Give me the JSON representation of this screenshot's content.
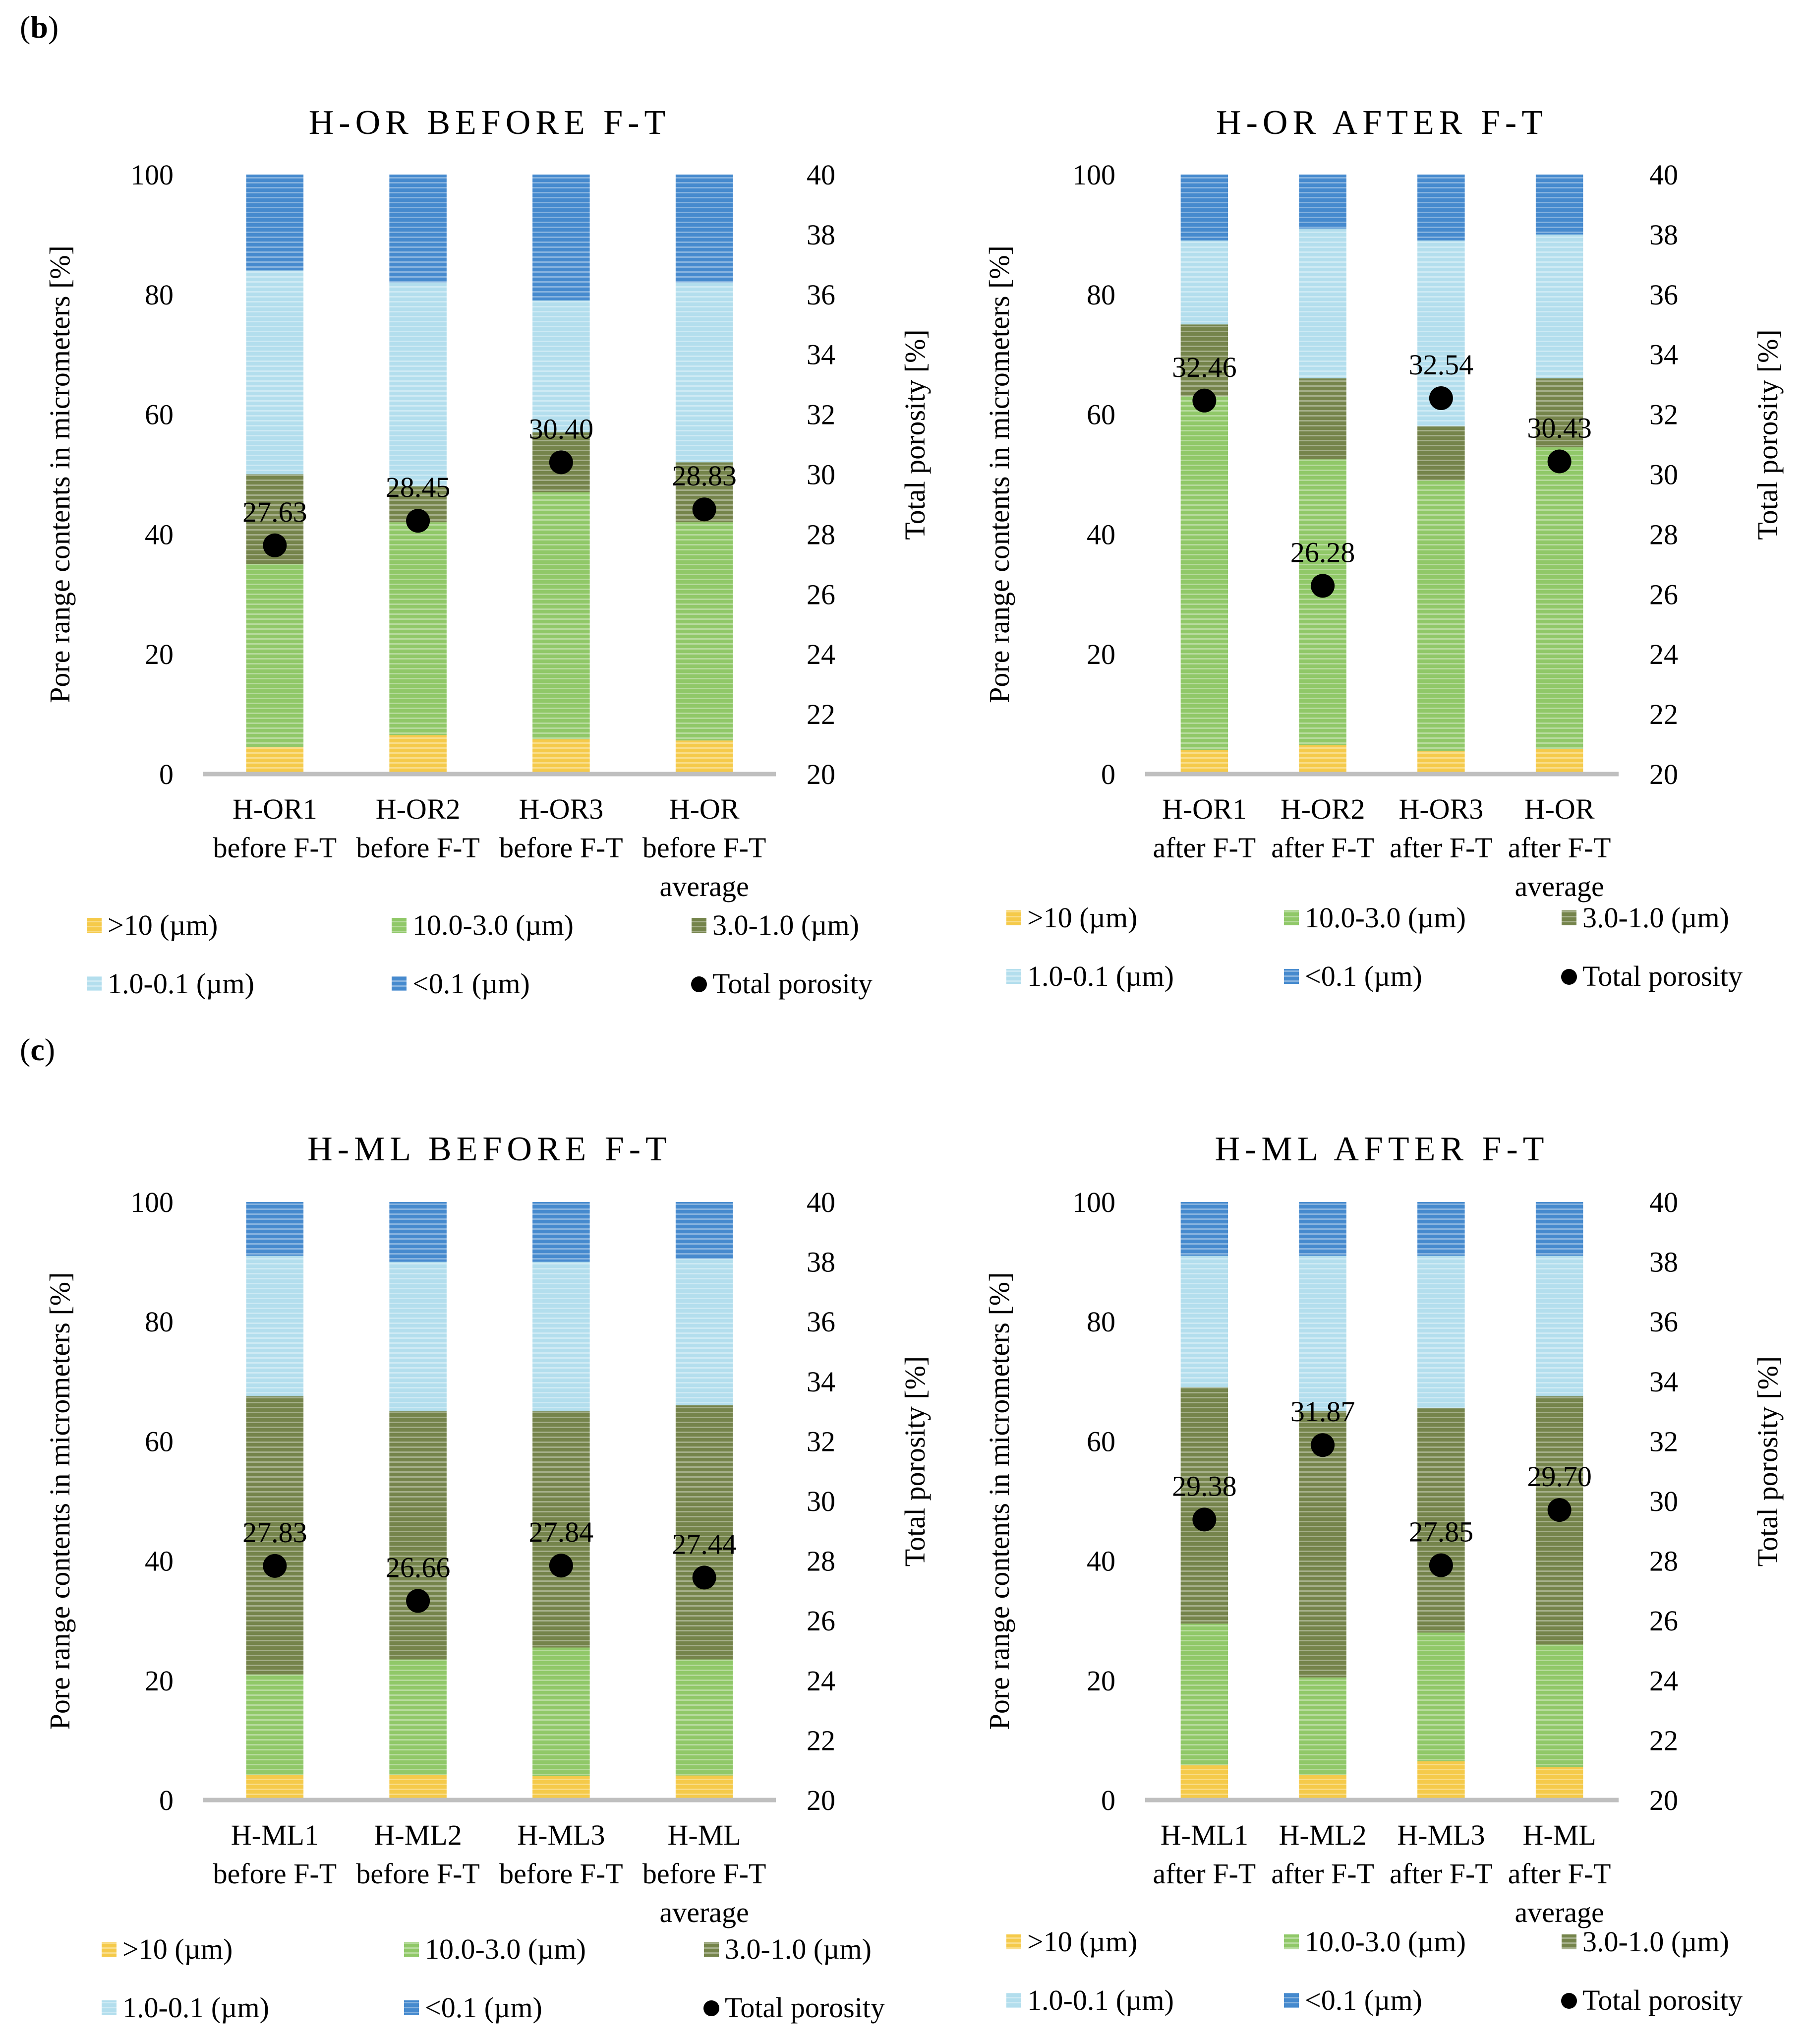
{
  "panel_labels": {
    "b": "b",
    "c": "c"
  },
  "legend_labels": [
    "&gt;10 (µm)",
    "10.0-3.0 (µm)",
    "3.0-1.0 (µm)",
    "1.0-0.1 (µm)",
    "&lt;0.1 (µm)",
    "Total porosity"
  ],
  "series_colors": {
    "gt10": "#F4C12A",
    "s10_3": "#7DBF4E",
    "s3_1": "#5D6E2B",
    "s1_01": "#A6D8EA",
    "lt01": "#2676C6",
    "dot": "#000000"
  },
  "chart_data": [
    {
      "type": "bar",
      "title": "H-OR BEFORE F-T",
      "ylabel": "Pore range contents in micrometers  [%]",
      "y2label": "Total porosity [%]",
      "ylim": [
        0,
        100
      ],
      "y2lim": [
        20,
        40
      ],
      "yticks": [
        "0",
        "20",
        "40",
        "60",
        "80",
        "100"
      ],
      "y2ticks": [
        "20",
        "22",
        "24",
        "26",
        "28",
        "30",
        "32",
        "34",
        "36",
        "38",
        "40"
      ],
      "categories": [
        [
          "H-OR1",
          "before F-T"
        ],
        [
          "H-OR2",
          "before F-T"
        ],
        [
          "H-OR3",
          "before F-T"
        ],
        [
          "H-OR",
          "before F-T",
          "average"
        ]
      ],
      "series": [
        {
          "name": ">10 (µm)",
          "values": [
            4.5,
            6.5,
            5.8,
            5.6
          ]
        },
        {
          "name": "10.0-3.0 (µm)",
          "values": [
            30.5,
            35.5,
            41.2,
            36.4
          ]
        },
        {
          "name": "3.0-1.0 (µm)",
          "values": [
            15.0,
            6.0,
            10.0,
            10.0
          ]
        },
        {
          "name": "1.0-0.1 (µm)",
          "values": [
            34.0,
            34.0,
            22.0,
            30.0
          ]
        },
        {
          "name": "<0.1 (µm)",
          "values": [
            16.0,
            18.0,
            21.0,
            18.0
          ]
        }
      ],
      "total_porosity": [
        27.63,
        28.45,
        30.4,
        28.83
      ],
      "total_porosity_labels": [
        "27.63",
        "28.45",
        "30.40",
        "28.83"
      ]
    },
    {
      "type": "bar",
      "title": "H-OR AFTER F-T",
      "ylabel": "Pore range contents in micrometers  [%]",
      "y2label": "Total porosity [%]",
      "ylim": [
        0,
        100
      ],
      "y2lim": [
        20,
        40
      ],
      "yticks": [
        "0",
        "20",
        "40",
        "60",
        "80",
        "100"
      ],
      "y2ticks": [
        "20",
        "22",
        "24",
        "26",
        "28",
        "30",
        "32",
        "34",
        "36",
        "38",
        "40"
      ],
      "categories": [
        [
          "H-OR1",
          "after F-T"
        ],
        [
          "H-OR2",
          "after F-T"
        ],
        [
          "H-OR3",
          "after F-T"
        ],
        [
          "H-OR",
          "after F-T",
          "average"
        ]
      ],
      "series": [
        {
          "name": ">10 (µm)",
          "values": [
            4.0,
            4.8,
            3.8,
            4.2
          ]
        },
        {
          "name": "10.0-3.0 (µm)",
          "values": [
            59.0,
            47.7,
            45.2,
            50.3
          ]
        },
        {
          "name": "3.0-1.0 (µm)",
          "values": [
            12.0,
            13.5,
            9.0,
            11.5
          ]
        },
        {
          "name": "1.0-0.1 (µm)",
          "values": [
            14.0,
            25.0,
            31.0,
            24.0
          ]
        },
        {
          "name": "<0.1 (µm)",
          "values": [
            11.0,
            9.0,
            11.0,
            10.0
          ]
        }
      ],
      "total_porosity": [
        32.46,
        26.28,
        32.54,
        30.43
      ],
      "total_porosity_labels": [
        "32.46",
        "26.28",
        "32.54",
        "30.43"
      ]
    },
    {
      "type": "bar",
      "title": "H-ML BEFORE F-T",
      "ylabel": "Pore range contents in micrometers  [%]",
      "y2label": "Total porosity [%]",
      "ylim": [
        0,
        100
      ],
      "y2lim": [
        20,
        40
      ],
      "yticks": [
        "0",
        "20",
        "40",
        "60",
        "80",
        "100"
      ],
      "y2ticks": [
        "20",
        "22",
        "24",
        "26",
        "28",
        "30",
        "32",
        "34",
        "36",
        "38",
        "40"
      ],
      "categories": [
        [
          "H-ML1",
          "before F-T"
        ],
        [
          "H-ML2",
          "before F-T"
        ],
        [
          "H-ML3",
          "before F-T"
        ],
        [
          "H-ML",
          "before F-T",
          "average"
        ]
      ],
      "series": [
        {
          "name": ">10 (µm)",
          "values": [
            4.2,
            4.2,
            4.0,
            4.1
          ]
        },
        {
          "name": "10.0-3.0 (µm)",
          "values": [
            16.8,
            19.3,
            21.5,
            19.4
          ]
        },
        {
          "name": "3.0-1.0 (µm)",
          "values": [
            46.5,
            41.5,
            39.5,
            42.5
          ]
        },
        {
          "name": "1.0-0.1 (µm)",
          "values": [
            23.5,
            25.0,
            25.0,
            24.5
          ]
        },
        {
          "name": "<0.1 (µm)",
          "values": [
            9.0,
            10.0,
            10.0,
            9.5
          ]
        }
      ],
      "total_porosity": [
        27.83,
        26.66,
        27.84,
        27.44
      ],
      "total_porosity_labels": [
        "27.83",
        "26.66",
        "27.84",
        "27.44"
      ]
    },
    {
      "type": "bar",
      "title": "H-ML AFTER F-T",
      "ylabel": "Pore range contents in micrometers  [%]",
      "y2label": "Total porosity [%]",
      "ylim": [
        0,
        100
      ],
      "y2lim": [
        20,
        40
      ],
      "yticks": [
        "0",
        "20",
        "40",
        "60",
        "80",
        "100"
      ],
      "y2ticks": [
        "20",
        "22",
        "24",
        "26",
        "28",
        "30",
        "32",
        "34",
        "36",
        "38",
        "40"
      ],
      "categories": [
        [
          "H-ML1",
          "after F-T"
        ],
        [
          "H-ML2",
          "after F-T"
        ],
        [
          "H-ML3",
          "after F-T"
        ],
        [
          "H-ML",
          "after F-T",
          "average"
        ]
      ],
      "series": [
        {
          "name": ">10 (µm)",
          "values": [
            5.8,
            4.2,
            6.5,
            5.5
          ]
        },
        {
          "name": "10.0-3.0 (µm)",
          "values": [
            23.7,
            16.3,
            21.5,
            20.5
          ]
        },
        {
          "name": "3.0-1.0 (µm)",
          "values": [
            39.5,
            44.5,
            37.5,
            41.5
          ]
        },
        {
          "name": "1.0-0.1 (µm)",
          "values": [
            22.0,
            26.0,
            25.5,
            23.5
          ]
        },
        {
          "name": "<0.1 (µm)",
          "values": [
            9.0,
            9.0,
            9.0,
            9.0
          ]
        }
      ],
      "total_porosity": [
        29.38,
        31.87,
        27.85,
        29.7
      ],
      "total_porosity_labels": [
        "29.38",
        "31.87",
        "27.85",
        "29.70"
      ]
    }
  ]
}
